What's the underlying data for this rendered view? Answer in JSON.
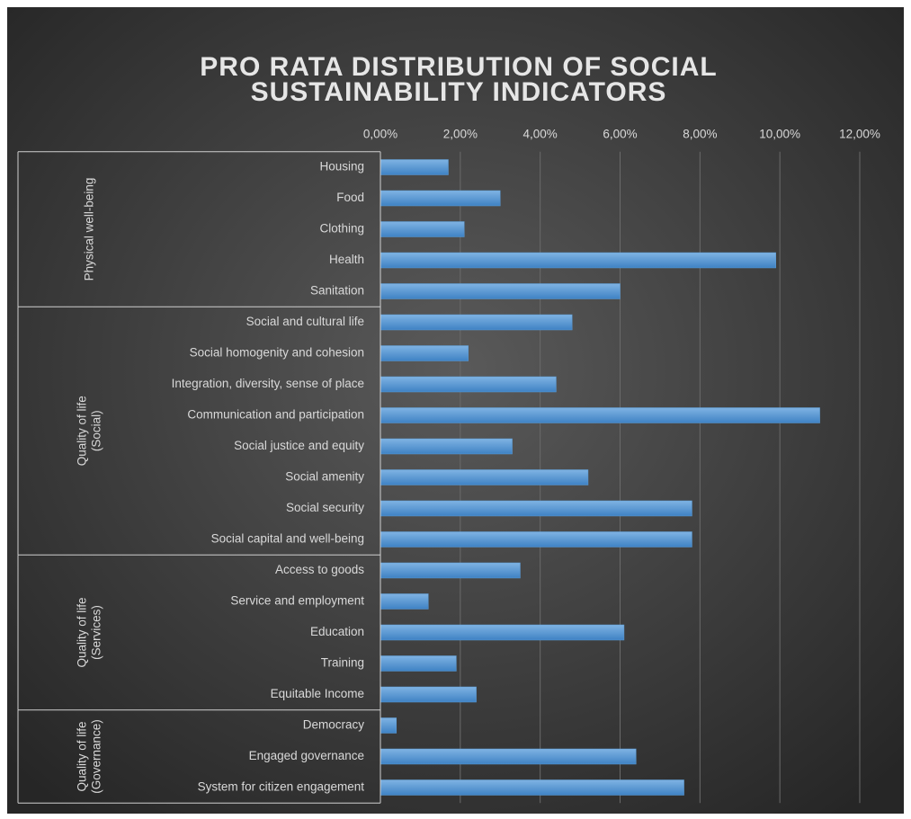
{
  "chart_data": {
    "type": "bar",
    "title": [
      "PRO RATA DISTRIBUTION OF SOCIAL",
      "SUSTAINABILITY INDICATORS"
    ],
    "color": "#5b9bd5",
    "xlim": [
      0,
      12
    ],
    "xticks": [
      {
        "value": 0,
        "label": "0,00%"
      },
      {
        "value": 2,
        "label": "2,00%"
      },
      {
        "value": 4,
        "label": "4,00%"
      },
      {
        "value": 6,
        "label": "6,00%"
      },
      {
        "value": 8,
        "label": "8,00%"
      },
      {
        "value": 10,
        "label": "10,00%"
      },
      {
        "value": 12,
        "label": "12,00%"
      }
    ],
    "grid": true,
    "groups": [
      {
        "label": [
          "Physical well-being"
        ],
        "categories": [
          "Housing",
          "Food",
          "Clothing",
          "Health",
          "Sanitation"
        ],
        "values": [
          1.7,
          3.0,
          2.1,
          9.9,
          6.0
        ]
      },
      {
        "label": [
          "Quality of life",
          "(Social)"
        ],
        "categories": [
          "Social and cultural life",
          "Social homogenity and cohesion",
          "Integration, diversity, sense of place",
          "Communication and participation",
          "Social justice and equity",
          "Social amenity",
          "Social security",
          "Social capital and well-being"
        ],
        "values": [
          4.8,
          2.2,
          4.4,
          11.0,
          3.3,
          5.2,
          7.8,
          7.8
        ]
      },
      {
        "label": [
          "Quality of life",
          "(Services)"
        ],
        "categories": [
          "Access to goods",
          "Service and employment",
          "Education",
          "Training",
          "Equitable Income"
        ],
        "values": [
          3.5,
          1.2,
          6.1,
          1.9,
          2.4
        ]
      },
      {
        "label": [
          "Quality of life",
          "(Governance)"
        ],
        "categories": [
          "Democracy",
          "Engaged governance",
          "System for citizen engagement"
        ],
        "values": [
          0.4,
          6.4,
          7.6
        ]
      }
    ]
  }
}
